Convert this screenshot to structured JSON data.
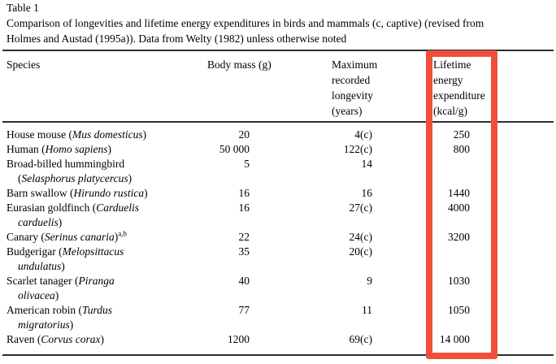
{
  "title": "Table 1",
  "caption": {
    "line1": "Comparison of longevities and lifetime energy expenditures in birds and mammals (c, captive) (revised from",
    "line2": "Holmes and Austad (1995a)). Data from Welty (1982) unless otherwise noted"
  },
  "columns": {
    "species": "Species",
    "body_mass": "Body mass (g)",
    "longevity": "Maximum\nrecorded\nlongevity\n(years)",
    "energy": "Lifetime\nenergy\nexpenditure\n(kcal/g)"
  },
  "highlight": {
    "color": "#f0503a",
    "highlighted_column": "Lifetime energy expenditure (kcal/g)"
  },
  "rows": [
    {
      "species_lines": [
        [
          {
            "t": "House mouse (",
            "s": "r"
          },
          {
            "t": "Mus domesticus",
            "s": "i"
          },
          {
            "t": ")",
            "s": "r"
          }
        ]
      ],
      "body_mass": "20",
      "longevity": "4(c)",
      "energy": "250"
    },
    {
      "species_lines": [
        [
          {
            "t": "Human (",
            "s": "r"
          },
          {
            "t": "Homo sapiens",
            "s": "i"
          },
          {
            "t": ")",
            "s": "r"
          }
        ]
      ],
      "body_mass": "50 000",
      "longevity": "122(c)",
      "energy": "800"
    },
    {
      "species_lines": [
        [
          {
            "t": "Broad-billed hummingbird",
            "s": "r"
          }
        ],
        [
          {
            "t": "(",
            "s": "r"
          },
          {
            "t": "Selasphorus platycercus",
            "s": "i"
          },
          {
            "t": ")",
            "s": "r"
          }
        ]
      ],
      "body_mass": "5",
      "longevity": "14",
      "energy": ""
    },
    {
      "species_lines": [
        [
          {
            "t": "Barn swallow (",
            "s": "r"
          },
          {
            "t": "Hirundo rustica",
            "s": "i"
          },
          {
            "t": ")",
            "s": "r"
          }
        ]
      ],
      "body_mass": "16",
      "longevity": "16",
      "energy": "1440"
    },
    {
      "species_lines": [
        [
          {
            "t": "Eurasian goldfinch (",
            "s": "r"
          },
          {
            "t": "Carduelis",
            "s": "i"
          }
        ],
        [
          {
            "t": "carduelis",
            "s": "i"
          },
          {
            "t": ")",
            "s": "r"
          }
        ]
      ],
      "body_mass": "16",
      "longevity": "27(c)",
      "energy": "4000"
    },
    {
      "species_lines": [
        [
          {
            "t": "Canary (",
            "s": "r"
          },
          {
            "t": "Serinus canaria",
            "s": "i"
          },
          {
            "t": ")",
            "s": "r"
          },
          {
            "t": "a,b",
            "s": "sup"
          }
        ]
      ],
      "body_mass": "22",
      "longevity": "24(c)",
      "energy": "3200"
    },
    {
      "species_lines": [
        [
          {
            "t": "Budgerigar (",
            "s": "r"
          },
          {
            "t": "Melopsittacus",
            "s": "i"
          }
        ],
        [
          {
            "t": "undulatus",
            "s": "i"
          },
          {
            "t": ")",
            "s": "r"
          }
        ]
      ],
      "body_mass": "35",
      "longevity": "20(c)",
      "energy": ""
    },
    {
      "species_lines": [
        [
          {
            "t": "Scarlet tanager (",
            "s": "r"
          },
          {
            "t": "Piranga",
            "s": "i"
          }
        ],
        [
          {
            "t": "olivacea",
            "s": "i"
          },
          {
            "t": ")",
            "s": "r"
          }
        ]
      ],
      "body_mass": "40",
      "longevity": "9",
      "energy": "1030"
    },
    {
      "species_lines": [
        [
          {
            "t": "American robin (",
            "s": "r"
          },
          {
            "t": "Turdus",
            "s": "i"
          }
        ],
        [
          {
            "t": "migratorius",
            "s": "i"
          },
          {
            "t": ")",
            "s": "r"
          }
        ]
      ],
      "body_mass": "77",
      "longevity": "11",
      "energy": "1050"
    },
    {
      "species_lines": [
        [
          {
            "t": "Raven (",
            "s": "r"
          },
          {
            "t": "Corvus corax",
            "s": "i"
          },
          {
            "t": ")",
            "s": "r"
          }
        ]
      ],
      "body_mass": "1200",
      "longevity": "69(c)",
      "energy": "14 000"
    }
  ]
}
